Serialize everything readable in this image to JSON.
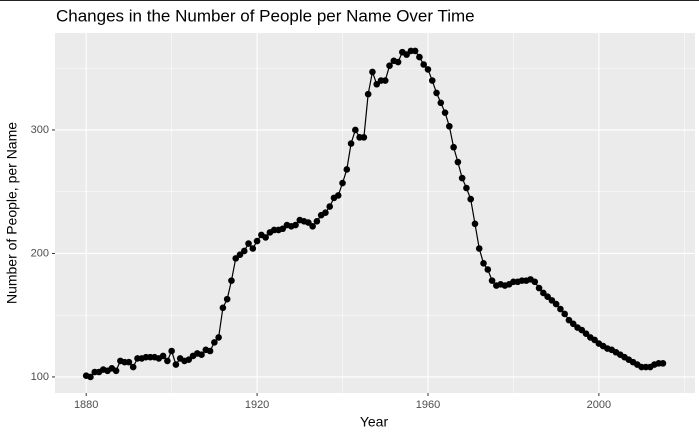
{
  "chart_data": {
    "type": "line",
    "title": "Changes in the Number of People per Name Over Time",
    "x_label": "Year",
    "y_label": "Number of People, per Name",
    "x": [
      1880,
      1881,
      1882,
      1883,
      1884,
      1885,
      1886,
      1887,
      1888,
      1889,
      1890,
      1891,
      1892,
      1893,
      1894,
      1895,
      1896,
      1897,
      1898,
      1899,
      1900,
      1901,
      1902,
      1903,
      1904,
      1905,
      1906,
      1907,
      1908,
      1909,
      1910,
      1911,
      1912,
      1913,
      1914,
      1915,
      1916,
      1917,
      1918,
      1919,
      1920,
      1921,
      1922,
      1923,
      1924,
      1925,
      1926,
      1927,
      1928,
      1929,
      1930,
      1931,
      1932,
      1933,
      1934,
      1935,
      1936,
      1937,
      1938,
      1939,
      1940,
      1941,
      1942,
      1943,
      1944,
      1945,
      1946,
      1947,
      1948,
      1949,
      1950,
      1951,
      1952,
      1953,
      1954,
      1955,
      1956,
      1957,
      1958,
      1959,
      1960,
      1961,
      1962,
      1963,
      1964,
      1965,
      1966,
      1967,
      1968,
      1969,
      1970,
      1971,
      1972,
      1973,
      1974,
      1975,
      1976,
      1977,
      1978,
      1979,
      1980,
      1981,
      1982,
      1983,
      1984,
      1985,
      1986,
      1987,
      1988,
      1989,
      1990,
      1991,
      1992,
      1993,
      1994,
      1995,
      1996,
      1997,
      1998,
      1999,
      2000,
      2001,
      2002,
      2003,
      2004,
      2005,
      2006,
      2007,
      2008,
      2009,
      2010,
      2011,
      2012,
      2013,
      2014,
      2015
    ],
    "values": [
      101,
      100,
      104,
      104,
      106,
      105,
      107,
      105,
      113,
      112,
      112,
      108,
      115,
      115,
      116,
      116,
      116,
      115,
      117,
      113,
      121,
      110,
      115,
      113,
      114,
      117,
      119,
      118,
      122,
      121,
      128,
      132,
      156,
      163,
      178,
      196,
      199,
      202,
      208,
      204,
      210,
      215,
      213,
      217,
      219,
      219,
      220,
      223,
      222,
      223,
      227,
      226,
      225,
      222,
      226,
      231,
      233,
      238,
      245,
      247,
      257,
      268,
      289,
      300,
      294,
      294,
      329,
      347,
      337,
      340,
      340,
      352,
      356,
      355,
      363,
      361,
      364,
      364,
      359,
      353,
      349,
      340,
      330,
      322,
      314,
      303,
      286,
      274,
      261,
      253,
      244,
      224,
      204,
      192,
      187,
      178,
      174,
      175,
      174,
      175,
      177,
      177,
      178,
      178,
      179,
      177,
      172,
      168,
      165,
      162,
      159,
      155,
      151,
      146,
      143,
      140,
      138,
      135,
      132,
      130,
      127,
      125,
      123,
      122,
      120,
      118,
      116,
      114,
      112,
      110,
      108,
      108,
      108,
      110,
      111,
      111
    ],
    "color": "#000000",
    "xlim": [
      1872.7,
      2022.5
    ],
    "ylim": [
      87,
      378.5
    ],
    "xticks": [
      1880,
      1920,
      1960,
      2000
    ],
    "yticks": [
      100,
      200,
      300
    ],
    "x_minor_ticks": [
      1900,
      1940,
      1980,
      2020
    ],
    "y_minor_ticks": [
      150,
      250,
      350
    ],
    "grid": true,
    "panel_color": "#ebebeb"
  }
}
